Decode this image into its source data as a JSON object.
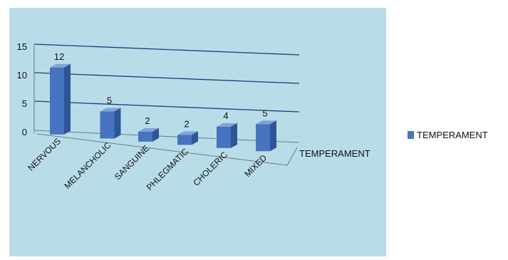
{
  "chart_data": {
    "type": "bar",
    "categories": [
      "NERVOUS",
      "MELANCHOLIC",
      "SANGUINE",
      "PHLEGMATIC",
      "CHOLERIC",
      "MIXED"
    ],
    "series": [
      {
        "name": "TEMPERAMENT",
        "values": [
          12,
          5,
          2,
          2,
          4,
          5
        ]
      }
    ],
    "depth_axis_label": "TEMPERAMENT",
    "y_ticks": [
      "0",
      "5",
      "10",
      "15"
    ],
    "ylim": [
      0,
      15
    ],
    "grid": true,
    "legend_position": "right",
    "colors": {
      "plot_background": "#b9dde8",
      "bar_front": "#4674c0",
      "bar_side": "#2e5597",
      "bar_top": "#7fa4da",
      "grid_line": "#1f3a7a"
    }
  }
}
